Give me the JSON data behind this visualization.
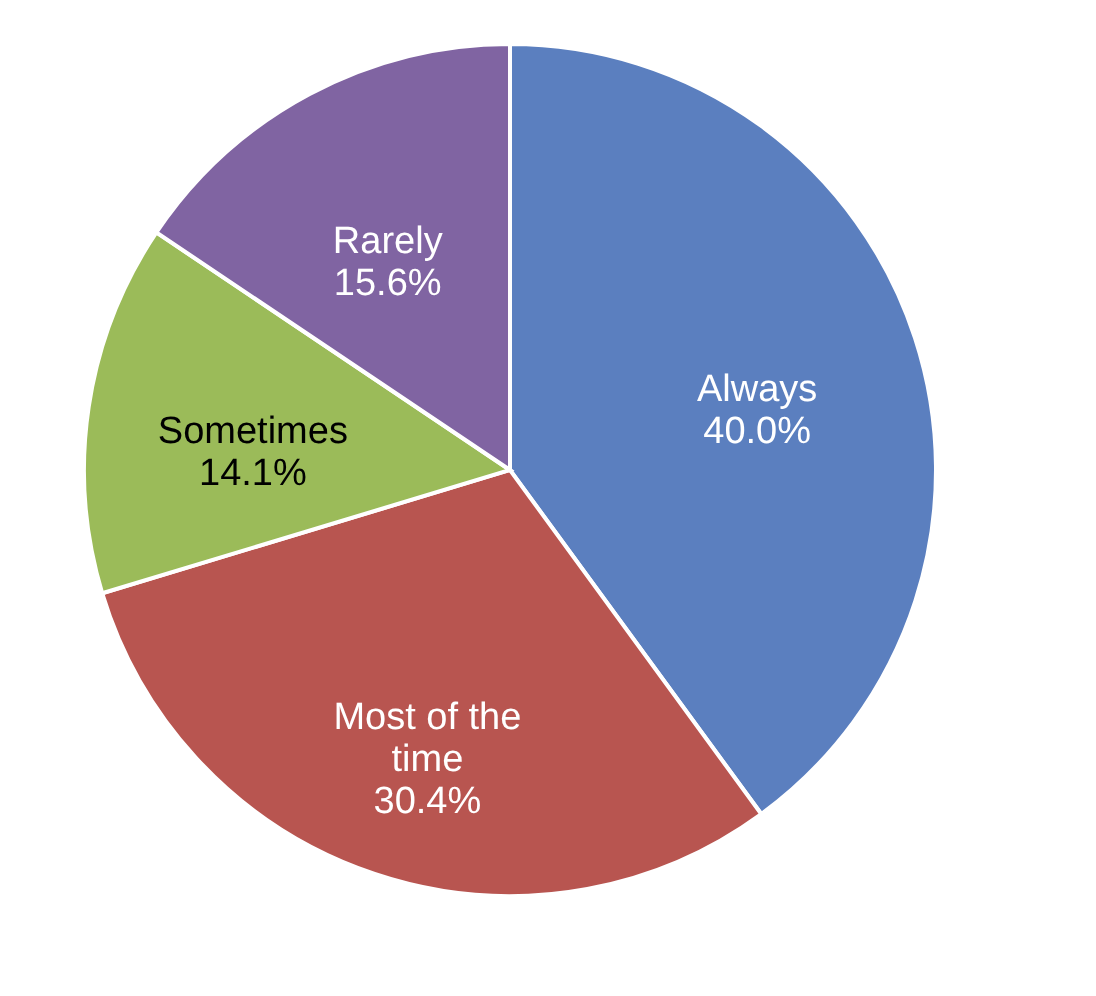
{
  "chart_data": {
    "type": "pie",
    "categories": [
      "Always",
      "Most of the time",
      "Sometimes",
      "Rarely"
    ],
    "values": [
      40.0,
      30.4,
      14.1,
      15.6
    ],
    "value_labels": [
      "40.0%",
      "30.4%",
      "14.1%",
      "15.6%"
    ],
    "colors": [
      "#5b7fbf",
      "#b85550",
      "#9bbb59",
      "#8064a2"
    ]
  }
}
